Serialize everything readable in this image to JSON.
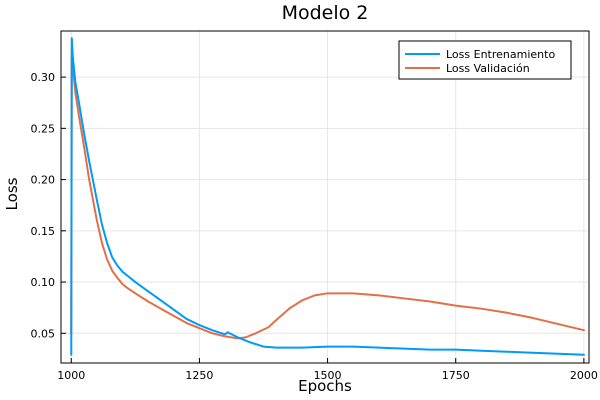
{
  "chart_data": {
    "type": "line",
    "title": "Modelo 2",
    "xlabel": "Epochs",
    "ylabel": "Loss",
    "xlim": [
      980,
      2010
    ],
    "ylim": [
      0.021,
      0.345
    ],
    "xticks": [
      1000,
      1250,
      1500,
      1750,
      2000
    ],
    "yticks": [
      0.05,
      0.1,
      0.15,
      0.2,
      0.25,
      0.3
    ],
    "grid": true,
    "legend_position": "top-right",
    "series": [
      {
        "name": "Loss Entrenamiento",
        "color": "#009af9",
        "x": [
          1000,
          1001,
          1003,
          1008,
          1015,
          1025,
          1035,
          1050,
          1060,
          1070,
          1080,
          1090,
          1100,
          1110,
          1125,
          1150,
          1175,
          1200,
          1225,
          1250,
          1275,
          1300,
          1305,
          1325,
          1350,
          1375,
          1400,
          1425,
          1450,
          1500,
          1525,
          1550,
          1600,
          1650,
          1700,
          1750,
          1800,
          1850,
          1900,
          1950,
          2000
        ],
        "y": [
          0.029,
          0.338,
          0.32,
          0.295,
          0.275,
          0.245,
          0.218,
          0.18,
          0.156,
          0.138,
          0.124,
          0.116,
          0.11,
          0.106,
          0.1,
          0.091,
          0.082,
          0.073,
          0.064,
          0.058,
          0.053,
          0.049,
          0.051,
          0.046,
          0.041,
          0.037,
          0.036,
          0.036,
          0.036,
          0.037,
          0.037,
          0.037,
          0.036,
          0.035,
          0.034,
          0.034,
          0.033,
          0.032,
          0.031,
          0.03,
          0.029
        ]
      },
      {
        "name": "Loss Validación",
        "color": "#e26f46",
        "x": [
          1000,
          1001,
          1003,
          1008,
          1015,
          1025,
          1035,
          1050,
          1060,
          1070,
          1080,
          1090,
          1100,
          1110,
          1125,
          1150,
          1175,
          1200,
          1225,
          1250,
          1275,
          1300,
          1325,
          1340,
          1360,
          1385,
          1400,
          1425,
          1450,
          1475,
          1500,
          1525,
          1550,
          1575,
          1600,
          1650,
          1700,
          1750,
          1800,
          1850,
          1900,
          1950,
          2000
        ],
        "y": [
          0.05,
          0.327,
          0.31,
          0.285,
          0.262,
          0.232,
          0.2,
          0.16,
          0.138,
          0.122,
          0.111,
          0.104,
          0.098,
          0.094,
          0.089,
          0.081,
          0.074,
          0.067,
          0.06,
          0.055,
          0.05,
          0.047,
          0.045,
          0.046,
          0.05,
          0.056,
          0.063,
          0.074,
          0.082,
          0.087,
          0.089,
          0.089,
          0.089,
          0.088,
          0.087,
          0.084,
          0.081,
          0.077,
          0.074,
          0.07,
          0.065,
          0.059,
          0.053
        ]
      }
    ]
  }
}
